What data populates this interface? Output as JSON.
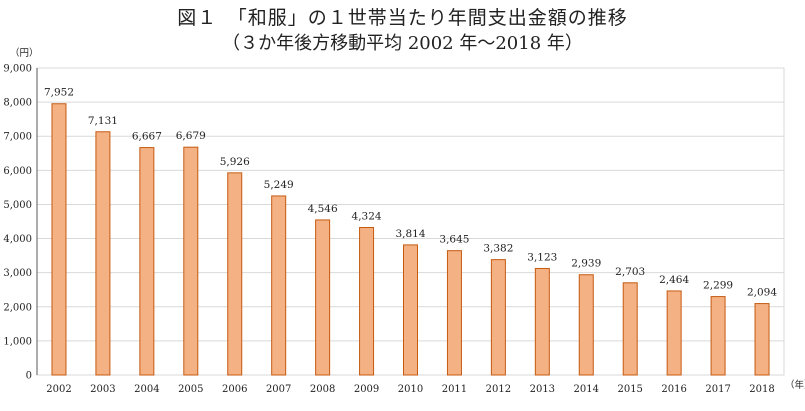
{
  "chart_data": {
    "type": "bar",
    "title": "図１　「和服」の１世帯当たり年間支出金額の推移",
    "subtitle": "（３か年後方移動平均 2002 年～2018 年）",
    "y_unit": "（円）",
    "x_unit": "（年）",
    "categories": [
      "2002",
      "2003",
      "2004",
      "2005",
      "2006",
      "2007",
      "2008",
      "2009",
      "2010",
      "2011",
      "2012",
      "2013",
      "2014",
      "2015",
      "2016",
      "2017",
      "2018"
    ],
    "values": [
      7952,
      7131,
      6667,
      6679,
      5926,
      5249,
      4546,
      4324,
      3814,
      3645,
      3382,
      3123,
      2939,
      2703,
      2464,
      2299,
      2094
    ],
    "value_labels": [
      "7,952",
      "7,131",
      "6,667",
      "6,679",
      "5,926",
      "5,249",
      "4,546",
      "4,324",
      "3,814",
      "3,645",
      "3,382",
      "3,123",
      "2,939",
      "2,703",
      "2,464",
      "2,299",
      "2,094"
    ],
    "y_ticks": [
      "0",
      "1,000",
      "2,000",
      "3,000",
      "4,000",
      "5,000",
      "6,000",
      "7,000",
      "8,000",
      "9,000"
    ],
    "ylim": [
      0,
      9000
    ],
    "grid": true,
    "legend": "none",
    "colors": {
      "bar_fill": "#f4b183",
      "bar_stroke": "#c55a11",
      "grid": "#d9d9d9",
      "axis": "#595959"
    }
  }
}
